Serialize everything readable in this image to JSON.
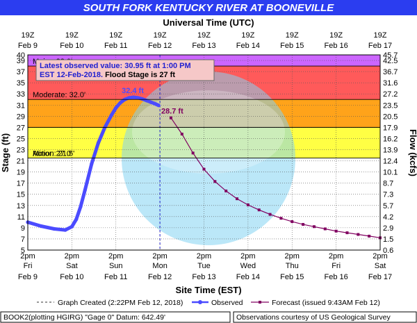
{
  "chart_data": {
    "type": "line",
    "title": "SOUTH FORK KENTUCKY RIVER AT BOONEVILLE",
    "top_axis_title": "Universal Time (UTC)",
    "xlabel": "Site Time (EST)",
    "ylabel": "Stage (ft)",
    "y2label": "Flow (kcfs)",
    "ylim": [
      5,
      40
    ],
    "y_ticks": [
      5,
      7,
      9,
      11,
      13,
      15,
      17,
      19,
      21,
      23,
      25,
      27,
      29,
      31,
      33,
      35,
      37,
      39,
      40
    ],
    "flow_ticks": [
      "0.6",
      "1.5",
      "2.9",
      "4.2",
      "5.7",
      "7.3",
      "8.7",
      "10.1",
      "12.4",
      "13.9",
      "16.2",
      "17.9",
      "20.5",
      "23.5",
      "27.2",
      "31.6",
      "36.7",
      "42.5",
      "45.7"
    ],
    "x_days": [
      0,
      1,
      2,
      3,
      4,
      5,
      6,
      7,
      8
    ],
    "bottom_ticks": [
      {
        "top": "2pm",
        "mid": "Fri",
        "bot": "Feb 9"
      },
      {
        "top": "2pm",
        "mid": "Sat",
        "bot": "Feb 10"
      },
      {
        "top": "2pm",
        "mid": "Sun",
        "bot": "Feb 11"
      },
      {
        "top": "2pm",
        "mid": "Mon",
        "bot": "Feb 12"
      },
      {
        "top": "2pm",
        "mid": "Tue",
        "bot": "Feb 13"
      },
      {
        "top": "2pm",
        "mid": "Wed",
        "bot": "Feb 14"
      },
      {
        "top": "2pm",
        "mid": "Thu",
        "bot": "Feb 15"
      },
      {
        "top": "2pm",
        "mid": "Fri",
        "bot": "Feb 16"
      },
      {
        "top": "2pm",
        "mid": "Sat",
        "bot": "Feb 17"
      }
    ],
    "top_ticks": [
      {
        "top": "19Z",
        "bot": "Feb 9"
      },
      {
        "top": "19Z",
        "bot": "Feb 10"
      },
      {
        "top": "19Z",
        "bot": "Feb 11"
      },
      {
        "top": "19Z",
        "bot": "Feb 12"
      },
      {
        "top": "19Z",
        "bot": "Feb 13"
      },
      {
        "top": "19Z",
        "bot": "Feb 14"
      },
      {
        "top": "19Z",
        "bot": "Feb 15"
      },
      {
        "top": "19Z",
        "bot": "Feb 16"
      },
      {
        "top": "19Z",
        "bot": "Feb 17"
      }
    ],
    "flood_categories": [
      {
        "name": "Major",
        "label": "Major: 38.0'",
        "from": 38,
        "to": 40,
        "color": "#cc66ff"
      },
      {
        "name": "Moderate",
        "label": "Moderate: 32.0'",
        "from": 32,
        "to": 38,
        "color": "#ff5a5a"
      },
      {
        "name": "Flood",
        "label": "",
        "from": 27,
        "to": 32,
        "color": "#ffa31a"
      },
      {
        "name": "Minor",
        "label": "Minor: 27.0'",
        "from": 21.5,
        "to": 27,
        "color": "#ffff44"
      },
      {
        "name": "Action",
        "label": "Action: 21.5'",
        "from": 21.5,
        "to": 21.5,
        "color": "#000000"
      }
    ],
    "series": [
      {
        "name": "Observed",
        "color": "#4b4bff",
        "x": [
          0.0,
          0.3,
          0.6,
          0.85,
          1.0,
          1.1,
          1.2,
          1.3,
          1.45,
          1.6,
          1.75,
          1.9,
          2.0,
          2.1,
          2.2,
          2.3,
          2.4,
          2.5,
          2.6,
          2.7,
          2.8,
          2.9,
          2.97
        ],
        "y": [
          10.0,
          9.3,
          8.8,
          8.6,
          9.2,
          10.5,
          12.8,
          15.8,
          20.5,
          24.2,
          27.0,
          29.2,
          30.5,
          31.4,
          32.0,
          32.3,
          32.4,
          32.3,
          32.1,
          31.8,
          31.5,
          31.2,
          30.95
        ]
      },
      {
        "name": "Forecast",
        "color": "#800060",
        "x": [
          3.25,
          3.5,
          3.75,
          4.0,
          4.25,
          4.5,
          4.75,
          5.0,
          5.25,
          5.5,
          5.75,
          6.0,
          6.25,
          6.5,
          6.75,
          7.0,
          7.25,
          7.5,
          7.75,
          8.0
        ],
        "y": [
          28.7,
          25.8,
          22.4,
          19.5,
          17.3,
          15.6,
          14.2,
          13.1,
          12.2,
          11.4,
          10.7,
          10.1,
          9.6,
          9.2,
          8.8,
          8.4,
          8.1,
          7.8,
          7.5,
          7.2
        ]
      }
    ],
    "annotations": {
      "observed_peak": "32.4 ft",
      "forecast_peak": "28.7 ft",
      "latest_line1": "Latest observed value: 30.95 ft at 1:00 PM",
      "latest_line2a": "EST 12-Feb-2018.",
      "latest_line2b": " Flood Stage is 27 ft"
    },
    "created_x": 3.0,
    "created_label": "Graph Created (2:22PM Feb 12, 2018)"
  },
  "colors": {
    "title_bg": "#2b3df0",
    "title_fg": "#ffffff",
    "observed": "#4b4bff",
    "forecast": "#800060",
    "gridline": "#555555"
  },
  "legend": {
    "created": "Graph Created (2:22PM Feb 12, 2018)",
    "observed": "Observed",
    "forecast": "Forecast (issued 9:43AM Feb 12)"
  },
  "footer": {
    "left": "BOOK2(plotting HGIRG) \"Gage 0\" Datum: 642.49'",
    "right": "Observations courtesy of US Geological Survey"
  }
}
